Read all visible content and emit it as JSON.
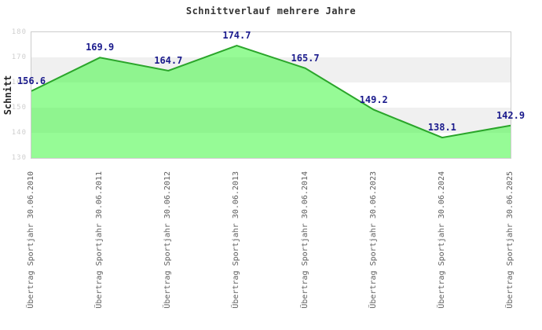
{
  "chart_data": {
    "type": "area",
    "title": "Schnittverlauf mehrere Jahre",
    "ylabel": "Schnitt",
    "xlabel": "",
    "categories": [
      "Übertrag Sportjahr 30.06.2010",
      "Übertrag Sportjahr 30.06.2011",
      "Übertrag Sportjahr 30.06.2012",
      "Übertrag Sportjahr 30.06.2013",
      "Übertrag Sportjahr 30.06.2014",
      "Übertrag Sportjahr 30.06.2023",
      "Übertrag Sportjahr 30.06.2024",
      "Übertrag Sportjahr 30.06.2025"
    ],
    "values": [
      156.6,
      169.9,
      164.7,
      174.7,
      165.7,
      149.2,
      138.1,
      142.9
    ],
    "ylim": [
      130,
      180
    ],
    "yticks": [
      180,
      170,
      160,
      150,
      140,
      130
    ],
    "grid": "alternating-horizontal-bands",
    "legend": "none",
    "colors": {
      "line": "#2aa52a",
      "fill": "rgba(64,247,64,0.55)",
      "value_labels": "#1a1a8c",
      "band_base": "#ffffff",
      "band_alt": "#f0f0f0",
      "axis_border": "#cccccc",
      "ytick_labels": "#cfcfcf",
      "category_labels": "#5f5f5f",
      "title": "#333333",
      "axis_label": "#222222"
    }
  }
}
